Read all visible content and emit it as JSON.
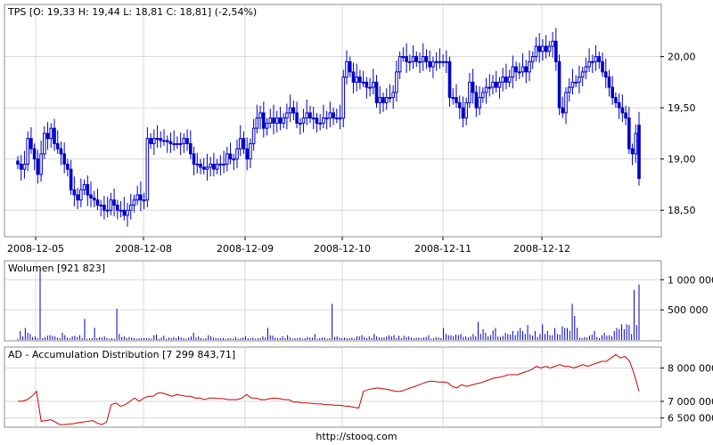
{
  "source_text": "http://stooq.com",
  "colors": {
    "price": "#0000cc",
    "volume": "#0000cc",
    "ad": "#cc0000",
    "grid": "#d8d8d8",
    "frame": "#8c8c8c"
  },
  "chart_data": [
    {
      "type": "candlestick",
      "title": "TPS [O: 19,33  H: 19,44  L: 18,81  C: 18,81] (-2,54%)",
      "x_tick_labels": [
        "2008-12-05",
        "2008-12-08",
        "2008-12-09",
        "2008-12-10",
        "2008-12-11",
        "2008-12-12"
      ],
      "y_tick_labels": [
        "18,50",
        "19,00",
        "19,50",
        "20,00"
      ],
      "y_ticks": [
        18.5,
        19.0,
        19.5,
        20.0
      ],
      "ylim": [
        18.25,
        20.5
      ],
      "grid": true,
      "close": [
        18.95,
        18.9,
        18.95,
        19.2,
        19.1,
        19.0,
        18.85,
        19.05,
        19.25,
        19.2,
        19.3,
        19.15,
        19.1,
        19.05,
        18.95,
        18.9,
        18.7,
        18.65,
        18.6,
        18.7,
        18.75,
        18.65,
        18.62,
        18.6,
        18.55,
        18.55,
        18.5,
        18.5,
        18.6,
        18.55,
        18.5,
        18.5,
        18.45,
        18.5,
        18.55,
        18.6,
        18.65,
        18.6,
        18.6,
        19.2,
        19.15,
        19.2,
        19.2,
        19.18,
        19.18,
        19.17,
        19.15,
        19.15,
        19.15,
        19.15,
        19.2,
        19.15,
        19.05,
        18.95,
        18.95,
        18.92,
        18.9,
        18.92,
        18.95,
        18.9,
        18.95,
        18.95,
        18.95,
        19.05,
        19.0,
        19.0,
        19.1,
        19.2,
        19.1,
        19.0,
        19.15,
        19.3,
        19.4,
        19.45,
        19.3,
        19.35,
        19.4,
        19.35,
        19.4,
        19.35,
        19.4,
        19.45,
        19.5,
        19.45,
        19.35,
        19.35,
        19.4,
        19.45,
        19.4,
        19.4,
        19.35,
        19.35,
        19.4,
        19.4,
        19.45,
        19.4,
        19.4,
        19.4,
        19.8,
        19.95,
        19.85,
        19.75,
        19.8,
        19.75,
        19.75,
        19.7,
        19.7,
        19.75,
        19.55,
        19.6,
        19.55,
        19.6,
        19.6,
        19.65,
        19.85,
        20.0,
        20.0,
        19.95,
        19.95,
        20.0,
        19.95,
        19.95,
        20.0,
        19.95,
        19.9,
        19.95,
        19.95,
        19.95,
        19.95,
        19.95,
        19.6,
        19.6,
        19.55,
        19.5,
        19.4,
        19.55,
        19.75,
        19.65,
        19.5,
        19.6,
        19.65,
        19.7,
        19.7,
        19.75,
        19.7,
        19.75,
        19.8,
        19.75,
        19.8,
        19.9,
        19.85,
        19.85,
        19.9,
        19.85,
        19.95,
        20.0,
        20.1,
        20.05,
        20.1,
        20.05,
        20.1,
        20.15,
        19.95,
        19.5,
        19.45,
        19.65,
        19.7,
        19.75,
        19.75,
        19.8,
        19.85,
        19.9,
        19.95,
        19.95,
        20.0,
        19.95,
        19.85,
        19.8,
        19.7,
        19.6,
        19.55,
        19.5,
        19.45,
        19.4,
        19.1,
        19.05,
        19.25,
        18.81
      ],
      "open_approx": "from screenshot",
      "last": {
        "open": 19.33,
        "high": 19.44,
        "low": 18.81,
        "close": 18.81
      }
    },
    {
      "type": "bar",
      "title": "Wolumen [921 823]",
      "y_tick_labels": [
        "500 000",
        "1 000 000"
      ],
      "y_ticks": [
        500000,
        1000000
      ],
      "ylim": [
        0,
        1300000
      ],
      "values": [
        20000,
        150000,
        60000,
        200000,
        120000,
        100000,
        50000,
        60000,
        30000,
        1200000,
        30000,
        50000,
        70000,
        80000,
        70000,
        60000,
        40000,
        30000,
        120000,
        80000,
        40000,
        30000,
        60000,
        70000,
        50000,
        80000,
        30000,
        350000,
        20000,
        30000,
        30000,
        200000,
        30000,
        50000,
        40000,
        60000,
        30000,
        20000,
        30000,
        20000,
        520000,
        100000,
        50000,
        60000,
        30000,
        50000,
        40000,
        30000,
        20000,
        30000,
        30000,
        30000,
        30000,
        30000,
        20000,
        80000,
        90000,
        20000,
        40000,
        70000,
        20000,
        40000,
        30000,
        50000,
        30000,
        60000,
        40000,
        30000,
        20000,
        40000,
        60000,
        120000,
        40000,
        60000,
        30000,
        20000,
        30000,
        80000,
        60000,
        40000,
        30000,
        30000,
        30000,
        30000,
        20000,
        30000,
        30000,
        20000,
        50000,
        20000,
        30000,
        40000,
        60000,
        30000,
        30000,
        40000,
        20000,
        30000,
        30000,
        60000,
        40000,
        200000,
        80000,
        70000,
        40000,
        30000,
        30000,
        60000,
        30000,
        80000,
        40000,
        20000,
        30000,
        30000,
        40000,
        20000,
        30000,
        50000,
        40000,
        40000,
        100000,
        20000,
        30000,
        40000,
        40000,
        20000,
        30000,
        600000,
        50000,
        60000,
        40000,
        30000,
        40000,
        30000,
        30000,
        40000,
        20000,
        60000,
        60000,
        80000,
        50000,
        30000,
        60000,
        30000,
        100000,
        60000,
        40000,
        40000,
        40000,
        60000,
        80000,
        60000,
        80000,
        30000,
        70000,
        30000,
        70000,
        50000,
        60000,
        40000,
        30000,
        40000,
        40000,
        30000,
        40000,
        50000,
        80000,
        20000,
        30000,
        50000,
        40000,
        30000,
        200000,
        100000,
        80000,
        80000,
        60000,
        90000,
        80000,
        100000,
        50000,
        60000,
        40000,
        60000,
        100000,
        60000,
        300000,
        100000,
        180000,
        120000,
        60000,
        80000,
        160000,
        200000,
        60000,
        50000,
        70000,
        120000,
        100000,
        90000,
        150000,
        80000,
        150000,
        200000,
        150000,
        100000,
        250000,
        90000,
        70000,
        150000,
        50000,
        100000,
        260000,
        100000,
        150000,
        80000,
        80000,
        200000,
        100000,
        90000,
        230000,
        200000,
        200000,
        150000,
        600000,
        400000,
        200000,
        40000,
        30000,
        50000,
        40000,
        70000,
        90000,
        150000,
        50000,
        30000,
        80000,
        120000,
        70000,
        80000,
        60000,
        150000,
        200000,
        180000,
        260000,
        180000,
        260000,
        250000,
        100000,
        830000,
        250000,
        921823
      ]
    },
    {
      "type": "line",
      "title": "AD - Accumulation Distribution [7 299 843,71]",
      "y_tick_labels": [
        "6 500 000",
        "7 000 000",
        "8 000 000"
      ],
      "y_ticks": [
        6500000,
        7000000,
        8000000
      ],
      "ylim": [
        6250000,
        8600000
      ],
      "values": [
        7000000,
        7000000,
        7050000,
        7150000,
        7300000,
        6400000,
        6420000,
        6450000,
        6380000,
        6300000,
        6300000,
        6320000,
        6330000,
        6360000,
        6380000,
        6400000,
        6420000,
        6350000,
        6300000,
        6380000,
        6900000,
        6950000,
        6850000,
        6900000,
        7000000,
        7100000,
        7000000,
        7100000,
        7150000,
        7150000,
        7250000,
        7250000,
        7200000,
        7150000,
        7200000,
        7180000,
        7150000,
        7150000,
        7100000,
        7100000,
        7050000,
        7100000,
        7100000,
        7080000,
        7080000,
        7050000,
        7050000,
        7050000,
        7100000,
        7200000,
        7100000,
        7100000,
        7050000,
        7050000,
        7080000,
        7100000,
        7080000,
        7050000,
        7050000,
        6980000,
        6980000,
        6950000,
        6950000,
        6940000,
        6920000,
        6920000,
        6900000,
        6900000,
        6880000,
        6880000,
        6860000,
        6850000,
        6820000,
        6800000,
        7300000,
        7350000,
        7380000,
        7400000,
        7380000,
        7360000,
        7330000,
        7300000,
        7300000,
        7350000,
        7400000,
        7450000,
        7500000,
        7550000,
        7600000,
        7600000,
        7580000,
        7580000,
        7560000,
        7450000,
        7400000,
        7500000,
        7450000,
        7480000,
        7520000,
        7550000,
        7600000,
        7650000,
        7700000,
        7720000,
        7750000,
        7800000,
        7800000,
        7800000,
        7850000,
        7900000,
        7950000,
        8050000,
        8000000,
        8050000,
        8000000,
        8050000,
        8100000,
        8050000,
        8050000,
        8000000,
        8050000,
        8100000,
        8050000,
        8100000,
        8150000,
        8200000,
        8200000,
        8300000,
        8400000,
        8300000,
        8350000,
        8200000,
        7800000,
        7300000
      ]
    }
  ]
}
